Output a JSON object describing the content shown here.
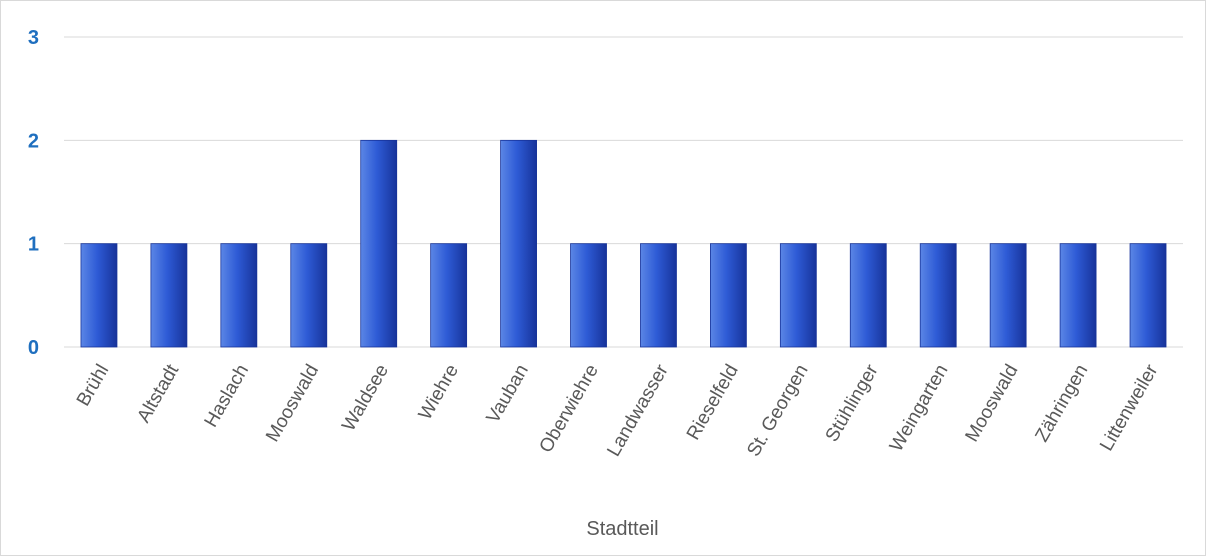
{
  "chart_data": {
    "type": "bar",
    "title": "",
    "xlabel": "Stadtteil",
    "ylabel": "",
    "categories": [
      "Brühl",
      "Altstadt",
      "Haslach",
      "Mooswald",
      "Waldsee",
      "Wiehre",
      "Vauban",
      "Oberwiehre",
      "Landwasser",
      "Rieselfeld",
      "St. Georgen",
      "Stühlinger",
      "Weingarten",
      "Mooswald",
      "Zähringen",
      "Littenweiler"
    ],
    "values": [
      1,
      1,
      1,
      1,
      2,
      1,
      2,
      1,
      1,
      1,
      1,
      1,
      1,
      1,
      1,
      1
    ],
    "ylim": [
      0,
      3
    ],
    "yticks": [
      "0",
      "1",
      "2",
      "3"
    ],
    "grid": true,
    "legend": "none",
    "colors": {
      "bar_light": "#5b86e5",
      "bar_mid": "#2e5bd6",
      "bar_dark": "#17339a",
      "y_tick_label": "#1f6fbf",
      "gridline": "#d9d9d9",
      "axis_text": "#595959"
    }
  }
}
